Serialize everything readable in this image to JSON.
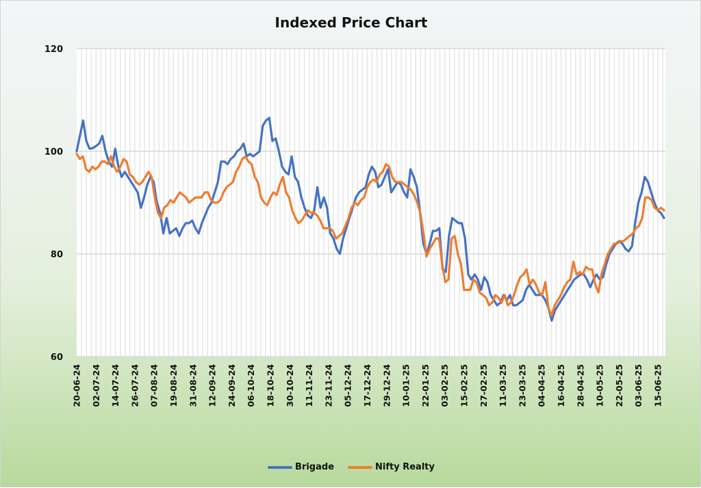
{
  "chart_data": {
    "type": "line",
    "title": "Indexed Price Chart",
    "xlabel": "",
    "ylabel": "",
    "ylim": [
      60,
      120
    ],
    "yticks": [
      60,
      80,
      100,
      120
    ],
    "grid": "vertical lines per data point, horizontal at y ticks",
    "legend_position": "bottom",
    "x_tick_labels": [
      "20-06-24",
      "02-07-24",
      "14-07-24",
      "26-07-24",
      "07-08-24",
      "19-08-24",
      "31-08-24",
      "12-09-24",
      "24-09-24",
      "06-10-24",
      "18-10-24",
      "30-10-24",
      "11-11-24",
      "23-11-24",
      "05-12-24",
      "17-12-24",
      "29-12-24",
      "10-01-25",
      "22-01-25",
      "03-02-25",
      "15-02-25",
      "27-02-25",
      "11-03-25",
      "23-03-25",
      "04-04-25",
      "16-04-25",
      "28-04-25",
      "10-05-25",
      "22-05-25",
      "03-06-25",
      "15-06-25"
    ],
    "x_step_days": 3,
    "series": [
      {
        "name": "Brigade",
        "color": "#4472c4",
        "values": [
          100,
          103,
          106,
          102,
          100.5,
          100.6,
          101,
          101.5,
          103,
          100,
          98,
          97,
          100.5,
          97,
          95,
          96,
          95,
          94,
          93,
          92,
          89,
          91,
          93.5,
          95,
          94,
          90,
          88,
          84,
          87,
          84,
          84.5,
          85,
          83.5,
          85,
          86,
          86,
          86.5,
          85,
          84,
          86,
          87.5,
          89,
          90,
          92,
          94,
          98,
          98,
          97.5,
          98.5,
          99,
          100,
          100.5,
          101.5,
          99,
          99.5,
          99,
          99.5,
          100,
          105,
          106,
          106.5,
          102,
          102.5,
          100,
          97,
          96,
          95.5,
          99,
          95,
          94,
          91,
          89,
          87.5,
          87,
          88.5,
          93,
          89,
          91,
          89,
          84,
          83,
          81,
          80,
          83,
          85,
          87,
          89,
          91,
          92,
          92.5,
          93,
          95.5,
          97,
          96,
          93,
          93.5,
          95,
          96.5,
          92,
          93,
          94,
          93.5,
          92,
          91,
          96.5,
          95,
          93,
          88,
          82,
          80,
          82,
          84.5,
          84.5,
          85,
          77,
          76.5,
          83.5,
          87,
          86.5,
          86,
          86,
          83,
          76,
          75,
          76,
          75,
          73,
          75.5,
          74.5,
          72,
          71,
          70,
          70.5,
          72,
          71,
          72,
          70,
          70,
          70.5,
          71,
          73,
          74,
          73,
          72,
          72,
          72,
          71,
          69.5,
          67,
          69,
          70,
          71,
          72,
          73,
          74,
          75,
          75.5,
          76,
          76,
          75,
          73.5,
          75,
          76,
          75,
          75.5,
          78,
          80,
          81,
          82,
          82.5,
          82,
          81,
          80.5,
          81.5,
          86,
          90,
          92,
          95,
          94,
          92,
          90,
          88.5,
          88,
          87
        ]
      },
      {
        "name": "Nifty Realty",
        "color": "#ed7d31",
        "values": [
          99.5,
          98.5,
          99,
          96.5,
          96,
          97,
          96.5,
          97,
          98,
          98,
          97.5,
          99,
          97,
          96,
          97,
          98.5,
          98,
          95.5,
          95,
          94,
          93.5,
          94,
          95,
          96,
          95,
          91,
          88,
          87,
          89,
          89.5,
          90.5,
          90,
          91,
          92,
          91.5,
          91,
          90,
          90.5,
          91,
          91,
          91,
          92,
          92,
          90.5,
          90,
          90,
          90.5,
          92,
          93,
          93.5,
          94,
          96,
          97,
          98.5,
          99,
          98,
          97.5,
          95,
          94,
          91,
          90,
          89.5,
          91,
          92,
          91.5,
          93.5,
          95,
          92,
          91,
          88.5,
          87,
          86,
          86.5,
          87.5,
          88.5,
          88,
          88,
          87.5,
          86.5,
          85,
          85,
          85,
          84.5,
          83,
          83.5,
          84,
          85.5,
          87,
          89,
          90,
          89.5,
          90.5,
          91,
          93,
          94,
          94.5,
          94,
          95.5,
          96,
          97.5,
          97,
          95,
          94,
          94,
          94,
          93.5,
          93,
          92.5,
          91.5,
          90,
          88,
          84,
          79.5,
          81,
          82,
          83,
          83,
          78,
          74.5,
          75,
          83,
          83.5,
          80,
          78,
          73,
          73,
          73,
          75,
          74.5,
          72.5,
          72,
          71.5,
          70,
          70.5,
          72,
          71.5,
          70.5,
          72,
          70,
          70.5,
          72,
          74,
          75.5,
          76,
          77,
          74,
          75,
          74,
          72.5,
          72,
          74.5,
          69.5,
          68,
          70,
          71,
          72,
          73.5,
          74.5,
          75,
          78.5,
          76,
          76.5,
          76,
          77.5,
          77,
          77,
          74,
          72.5,
          76,
          78,
          80,
          81,
          82,
          82,
          82.5,
          82.5,
          83,
          83.5,
          84,
          85,
          85.5,
          87,
          91,
          91,
          90.5,
          89,
          88.5,
          89,
          88.5
        ]
      }
    ]
  }
}
